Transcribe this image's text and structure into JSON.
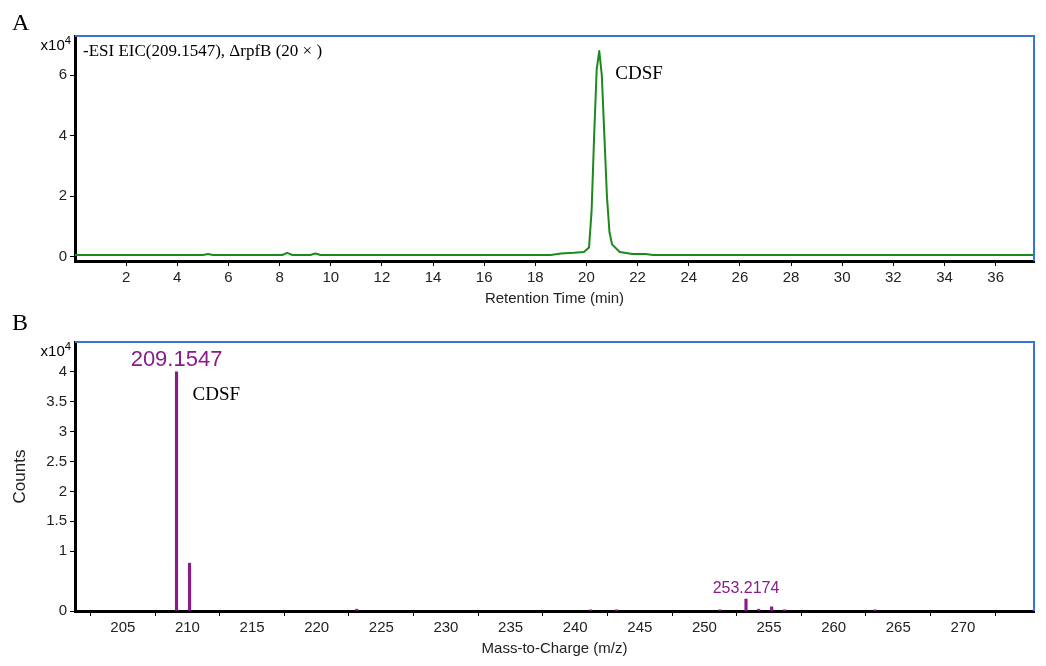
{
  "chart_data": [
    {
      "type": "line",
      "title": "-ESI EIC(209.1547), ΔrpfB (20 × )",
      "xlabel": "Retention Time (min)",
      "annotations": [
        "A",
        "x10$^{4}$",
        {
          "text": "CDSF",
          "x": 20.5,
          "y": 6.8
        }
      ],
      "x": [
        0,
        5,
        5.2,
        5.4,
        8.1,
        8.3,
        8.5,
        9.2,
        9.4,
        9.6,
        18.6,
        19,
        19.5,
        19.9,
        20.1,
        20.2,
        20.3,
        20.4,
        20.5,
        20.6,
        20.7,
        20.8,
        20.9,
        21,
        21.3,
        21.8,
        22.3,
        22.6,
        37.5
      ],
      "values": [
        0.05,
        0.05,
        0.08,
        0.05,
        0.05,
        0.12,
        0.05,
        0.05,
        0.1,
        0.05,
        0.05,
        0.1,
        0.12,
        0.15,
        0.3,
        1.5,
        4,
        6.2,
        6.8,
        6,
        4,
        2,
        0.8,
        0.4,
        0.15,
        0.08,
        0.08,
        0.05,
        0.05
      ],
      "color": "#1a8a1a",
      "marker": "none",
      "xlim": [
        0,
        37.5
      ],
      "ylim": [
        -0.15,
        7.3
      ],
      "xticks": [
        2,
        4,
        6,
        8,
        10,
        12,
        14,
        16,
        18,
        20,
        22,
        24,
        26,
        28,
        30,
        32,
        34,
        36
      ],
      "yticks": [
        0,
        2,
        4,
        6
      ],
      "grid": false,
      "legend": false
    },
    {
      "type": "bar",
      "xlabel": "Mass-to-Charge (m/z)",
      "ylabel": "Counts",
      "annotations": [
        "B",
        "x10$^{4}$",
        {
          "text": "CDSF",
          "x": 209.1547,
          "y": 4
        },
        {
          "text": "209.1547",
          "x": 209.1547,
          "y": 4
        },
        {
          "text": "253.2174",
          "x": 253.2174,
          "y": 0.2
        }
      ],
      "x": [
        209.1547,
        210.16,
        223.1,
        241.2,
        243.2,
        251.2,
        253.2174,
        254.2,
        255.2,
        256.2,
        263.2
      ],
      "values": [
        4,
        0.8,
        0.03,
        0.02,
        0.02,
        0.02,
        0.2,
        0.03,
        0.07,
        0.02,
        0.02
      ],
      "color": "#8b1a8b",
      "xlim": [
        201.3,
        275.5
      ],
      "ylim": [
        0,
        4.5
      ],
      "xticks": [
        205,
        210,
        215,
        220,
        225,
        230,
        235,
        240,
        245,
        250,
        255,
        260,
        265,
        270
      ],
      "yticks": [
        0,
        1,
        1.5,
        2,
        2.5,
        3,
        3.5,
        4
      ],
      "grid": false,
      "legend": false
    }
  ]
}
